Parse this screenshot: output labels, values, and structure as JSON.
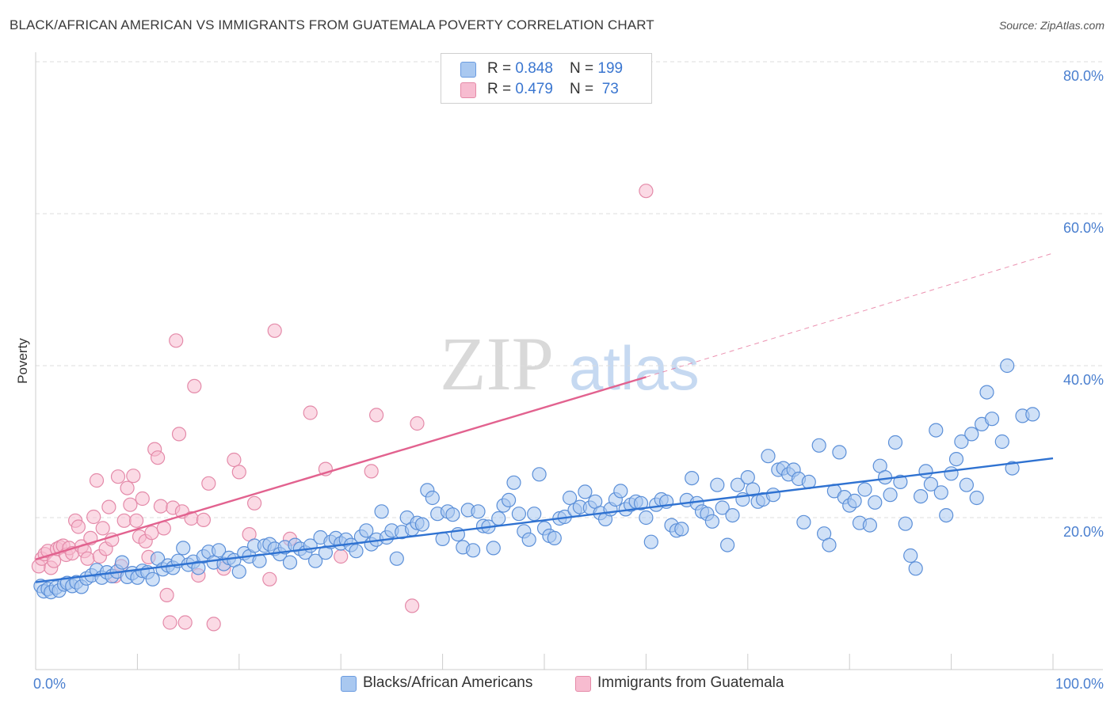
{
  "header": {
    "title": "BLACK/AFRICAN AMERICAN VS IMMIGRANTS FROM GUATEMALA POVERTY CORRELATION CHART",
    "source": "Source: ZipAtlas.com"
  },
  "watermark": {
    "zip": "ZIP",
    "atlas": "atlas"
  },
  "legend": {
    "rows": [
      {
        "r_label": "R = ",
        "r_value": "0.848",
        "n_label": "N = ",
        "n_value": "199",
        "color": "#a9c8f0",
        "border": "#6a9be0"
      },
      {
        "r_label": "R = ",
        "r_value": "0.479",
        "n_label": "N = ",
        "n_value": " 73",
        "color": "#f7bcd0",
        "border": "#e58aa8"
      }
    ]
  },
  "bottom_legend": {
    "blue_label": "Blacks/African Americans",
    "pink_label": "Immigrants from Guatemala"
  },
  "colors": {
    "blue_fill": "#a9c8f0",
    "blue_stroke": "#5b8fd8",
    "blue_line": "#2f72d1",
    "pink_fill": "#f7bcd0",
    "pink_stroke": "#e48aa9",
    "pink_line": "#e2628f",
    "grid": "#dddddd",
    "axis_text": "#4a7fcf"
  },
  "chart_data": {
    "type": "scatter",
    "title": "BLACK/AFRICAN AMERICAN VS IMMIGRANTS FROM GUATEMALA POVERTY CORRELATION CHART",
    "xlabel": "",
    "ylabel": "Poverty",
    "xlim": [
      0,
      100
    ],
    "ylim": [
      0,
      80
    ],
    "x_ticks": [
      "0.0%",
      "100.0%"
    ],
    "y_ticks": [
      {
        "value": 20,
        "label": "20.0%"
      },
      {
        "value": 40,
        "label": "40.0%"
      },
      {
        "value": 60,
        "label": "60.0%"
      },
      {
        "value": 80,
        "label": "80.0%"
      }
    ],
    "grid": true,
    "legend_position": "top-center",
    "series": [
      {
        "name": "Blacks/African Americans",
        "r": 0.848,
        "n": 199,
        "trend": {
          "x": [
            0,
            100
          ],
          "y": [
            11.5,
            27.8
          ]
        },
        "points": [
          [
            0.5,
            11
          ],
          [
            0.8,
            10.3
          ],
          [
            1.2,
            10.6
          ],
          [
            1.5,
            10.2
          ],
          [
            2,
            10.8
          ],
          [
            2.3,
            10.4
          ],
          [
            2.8,
            11.2
          ],
          [
            3.1,
            11.4
          ],
          [
            3.6,
            11
          ],
          [
            4,
            11.5
          ],
          [
            4.5,
            10.9
          ],
          [
            5,
            12
          ],
          [
            5.5,
            12.4
          ],
          [
            6,
            13.1
          ],
          [
            6.5,
            12.1
          ],
          [
            7,
            12.8
          ],
          [
            7.5,
            12.3
          ],
          [
            8,
            12.9
          ],
          [
            8.5,
            14.1
          ],
          [
            9,
            12.2
          ],
          [
            9.5,
            12.7
          ],
          [
            10,
            12.1
          ],
          [
            10.5,
            13
          ],
          [
            11,
            12.8
          ],
          [
            11.5,
            11.9
          ],
          [
            12,
            14.6
          ],
          [
            12.5,
            13.2
          ],
          [
            13,
            13.7
          ],
          [
            13.5,
            13.4
          ],
          [
            14,
            14.3
          ],
          [
            14.5,
            16
          ],
          [
            15,
            13.8
          ],
          [
            15.5,
            14.2
          ],
          [
            16,
            13.4
          ],
          [
            16.5,
            14.9
          ],
          [
            17,
            15.5
          ],
          [
            17.5,
            14.1
          ],
          [
            18,
            15.7
          ],
          [
            18.5,
            13.9
          ],
          [
            19,
            14.7
          ],
          [
            19.5,
            14.4
          ],
          [
            20,
            12.9
          ],
          [
            20.5,
            15.3
          ],
          [
            21,
            14.9
          ],
          [
            21.5,
            16.3
          ],
          [
            22,
            14.3
          ],
          [
            22.5,
            16.3
          ],
          [
            23,
            16.5
          ],
          [
            23.5,
            15.9
          ],
          [
            24,
            15.2
          ],
          [
            24.5,
            16.1
          ],
          [
            25,
            14.1
          ],
          [
            25.5,
            16.4
          ],
          [
            26,
            15.9
          ],
          [
            26.5,
            15.4
          ],
          [
            27,
            16.3
          ],
          [
            27.5,
            14.3
          ],
          [
            28,
            17.4
          ],
          [
            28.5,
            15.4
          ],
          [
            29,
            16.8
          ],
          [
            29.5,
            17.3
          ],
          [
            30,
            16.6
          ],
          [
            30.5,
            17.1
          ],
          [
            31,
            16.4
          ],
          [
            31.5,
            15.6
          ],
          [
            32,
            17.5
          ],
          [
            32.5,
            18.3
          ],
          [
            33,
            16.5
          ],
          [
            33.5,
            17.1
          ],
          [
            34,
            20.8
          ],
          [
            34.5,
            17.4
          ],
          [
            35,
            18.3
          ],
          [
            35.5,
            14.6
          ],
          [
            36,
            18.1
          ],
          [
            36.5,
            20
          ],
          [
            37,
            18.5
          ],
          [
            37.5,
            19.3
          ],
          [
            38,
            19.1
          ],
          [
            38.5,
            23.6
          ],
          [
            39,
            22.6
          ],
          [
            39.5,
            20.5
          ],
          [
            40,
            17.2
          ],
          [
            40.5,
            20.8
          ],
          [
            41,
            20.4
          ],
          [
            41.5,
            17.8
          ],
          [
            42,
            16.1
          ],
          [
            42.5,
            21
          ],
          [
            43,
            15.7
          ],
          [
            43.5,
            20.8
          ],
          [
            44,
            18.9
          ],
          [
            44.5,
            18.8
          ],
          [
            45,
            16
          ],
          [
            45.5,
            19.9
          ],
          [
            46,
            21.6
          ],
          [
            46.5,
            22.3
          ],
          [
            47,
            24.6
          ],
          [
            47.5,
            20.5
          ],
          [
            48,
            18.2
          ],
          [
            48.5,
            17.1
          ],
          [
            49,
            20.5
          ],
          [
            49.5,
            25.7
          ],
          [
            50,
            18.6
          ],
          [
            50.5,
            17.6
          ],
          [
            51,
            17.3
          ],
          [
            51.5,
            19.9
          ],
          [
            52,
            20.1
          ],
          [
            52.5,
            22.6
          ],
          [
            53,
            21
          ],
          [
            53.5,
            21.4
          ],
          [
            54,
            23.4
          ],
          [
            54.5,
            21.3
          ],
          [
            55,
            22.1
          ],
          [
            55.5,
            20.6
          ],
          [
            56,
            19.8
          ],
          [
            56.5,
            21.1
          ],
          [
            57,
            22.4
          ],
          [
            57.5,
            23.5
          ],
          [
            58,
            21.1
          ],
          [
            58.5,
            21.7
          ],
          [
            59,
            22.1
          ],
          [
            59.5,
            21.9
          ],
          [
            60,
            20
          ],
          [
            60.5,
            16.8
          ],
          [
            61,
            21.7
          ],
          [
            61.5,
            22.4
          ],
          [
            62,
            22.1
          ],
          [
            62.5,
            19
          ],
          [
            63,
            18.3
          ],
          [
            63.5,
            18.5
          ],
          [
            64,
            22.3
          ],
          [
            64.5,
            25.2
          ],
          [
            65,
            21.9
          ],
          [
            65.5,
            20.8
          ],
          [
            66,
            20.5
          ],
          [
            66.5,
            19.5
          ],
          [
            67,
            24.3
          ],
          [
            67.5,
            21.3
          ],
          [
            68,
            16.4
          ],
          [
            68.5,
            20.3
          ],
          [
            69,
            24.3
          ],
          [
            69.5,
            22.4
          ],
          [
            70,
            25.3
          ],
          [
            70.5,
            23.7
          ],
          [
            71,
            22.1
          ],
          [
            71.5,
            22.4
          ],
          [
            72,
            28.1
          ],
          [
            72.5,
            23
          ],
          [
            73,
            26.3
          ],
          [
            73.5,
            26.5
          ],
          [
            74,
            25.7
          ],
          [
            74.5,
            26.3
          ],
          [
            75,
            25.1
          ],
          [
            75.5,
            19.4
          ],
          [
            76,
            24.7
          ],
          [
            77,
            29.5
          ],
          [
            77.5,
            17.9
          ],
          [
            78,
            16.4
          ],
          [
            78.5,
            23.5
          ],
          [
            79,
            28.6
          ],
          [
            79.5,
            22.7
          ],
          [
            80,
            21.6
          ],
          [
            80.5,
            22.2
          ],
          [
            81,
            19.3
          ],
          [
            81.5,
            23.7
          ],
          [
            82,
            19
          ],
          [
            82.5,
            22
          ],
          [
            83,
            26.8
          ],
          [
            83.5,
            25.3
          ],
          [
            84,
            23
          ],
          [
            84.5,
            29.9
          ],
          [
            85,
            24.7
          ],
          [
            85.5,
            19.2
          ],
          [
            86,
            15
          ],
          [
            86.5,
            13.3
          ],
          [
            87,
            22.8
          ],
          [
            87.5,
            26.1
          ],
          [
            88,
            24.4
          ],
          [
            88.5,
            31.5
          ],
          [
            89,
            23.3
          ],
          [
            89.5,
            20.3
          ],
          [
            90,
            25.8
          ],
          [
            90.5,
            27.7
          ],
          [
            91,
            30
          ],
          [
            91.5,
            24.3
          ],
          [
            92,
            31
          ],
          [
            92.5,
            22.6
          ],
          [
            93,
            32.3
          ],
          [
            93.5,
            36.5
          ],
          [
            94,
            33
          ],
          [
            95,
            30
          ],
          [
            95.5,
            40
          ],
          [
            96,
            26.5
          ],
          [
            97,
            33.4
          ],
          [
            98,
            33.6
          ]
        ]
      },
      {
        "name": "Immigrants from Guatemala",
        "r": 0.479,
        "n": 73,
        "trend": {
          "x": [
            0,
            60
          ],
          "y": [
            14.5,
            38.5
          ]
        },
        "trend_extension": {
          "x": [
            60,
            100
          ],
          "y": [
            38.5,
            54.8
          ]
        },
        "points": [
          [
            0.3,
            13.6
          ],
          [
            0.6,
            14.6
          ],
          [
            0.9,
            15.2
          ],
          [
            1.2,
            15.6
          ],
          [
            1.5,
            13.4
          ],
          [
            1.8,
            14.3
          ],
          [
            2.1,
            15.9
          ],
          [
            2.4,
            16.1
          ],
          [
            2.7,
            16.3
          ],
          [
            3,
            15.1
          ],
          [
            3.3,
            16
          ],
          [
            3.6,
            15.3
          ],
          [
            3.9,
            19.6
          ],
          [
            4.2,
            18.8
          ],
          [
            4.5,
            16.2
          ],
          [
            4.8,
            15.6
          ],
          [
            5.1,
            14.6
          ],
          [
            5.4,
            17.3
          ],
          [
            5.7,
            20.1
          ],
          [
            6,
            24.9
          ],
          [
            6.3,
            14.9
          ],
          [
            6.6,
            18.6
          ],
          [
            6.9,
            15.9
          ],
          [
            7.2,
            21.4
          ],
          [
            7.5,
            17.1
          ],
          [
            7.8,
            12.3
          ],
          [
            8.1,
            25.4
          ],
          [
            8.4,
            13.6
          ],
          [
            8.7,
            19.6
          ],
          [
            9,
            23.9
          ],
          [
            9.3,
            21.7
          ],
          [
            9.6,
            25.5
          ],
          [
            9.9,
            19.6
          ],
          [
            10.2,
            17.5
          ],
          [
            10.5,
            22.5
          ],
          [
            10.8,
            16.9
          ],
          [
            11.1,
            14.8
          ],
          [
            11.4,
            18
          ],
          [
            11.7,
            29
          ],
          [
            12,
            27.9
          ],
          [
            12.3,
            21.5
          ],
          [
            12.6,
            18.6
          ],
          [
            12.9,
            9.8
          ],
          [
            13.2,
            6.2
          ],
          [
            13.5,
            21.3
          ],
          [
            13.8,
            43.3
          ],
          [
            14.1,
            31
          ],
          [
            14.4,
            20.8
          ],
          [
            14.7,
            6.2
          ],
          [
            15.3,
            19.9
          ],
          [
            15.6,
            37.3
          ],
          [
            16,
            12.4
          ],
          [
            16.5,
            19.7
          ],
          [
            17,
            24.5
          ],
          [
            17.5,
            6
          ],
          [
            18.5,
            13.3
          ],
          [
            19.5,
            27.6
          ],
          [
            20,
            26
          ],
          [
            21,
            17.8
          ],
          [
            21.5,
            21.9
          ],
          [
            23,
            11.9
          ],
          [
            23.5,
            44.6
          ],
          [
            25,
            17.2
          ],
          [
            27,
            33.8
          ],
          [
            28.5,
            26.4
          ],
          [
            30,
            14.9
          ],
          [
            33,
            26.1
          ],
          [
            33.5,
            33.5
          ],
          [
            37,
            8.4
          ],
          [
            37.5,
            32.4
          ],
          [
            60,
            63
          ]
        ]
      }
    ]
  }
}
